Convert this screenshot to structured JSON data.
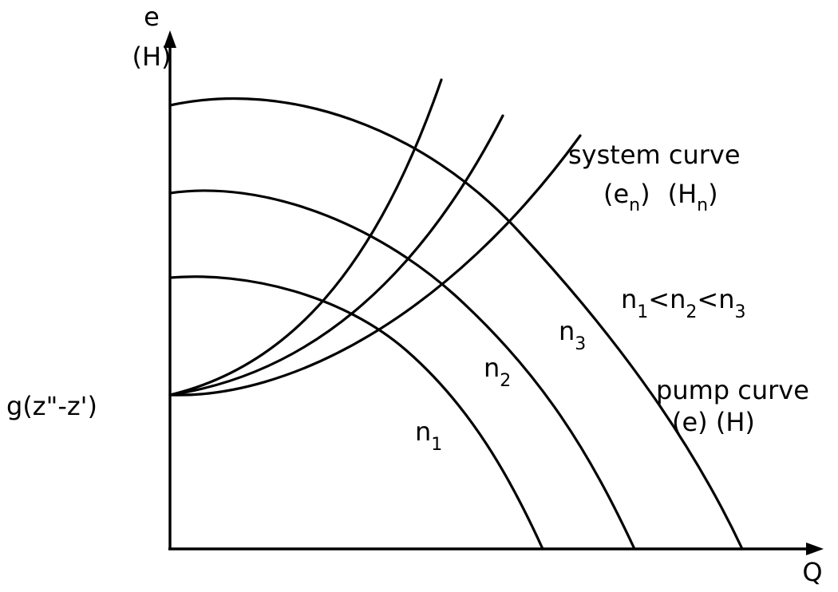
{
  "axes": {
    "y_label": "e",
    "y_label_alt": "(H)",
    "x_label": "Q",
    "origin_label": "g(z\"-z')"
  },
  "system_curve": {
    "line1": "system curve",
    "e_main": "e",
    "e_sub": "n",
    "H_main": "H",
    "H_sub": "n"
  },
  "speed_relation": {
    "n": "n",
    "sub1": "1",
    "sub2": "2",
    "sub3": "3",
    "lt": "<"
  },
  "pump_curve": {
    "line1": "pump curve",
    "line2": "(e) (H)"
  },
  "curves": {
    "n1": {
      "main": "n",
      "sub": "1"
    },
    "n2": {
      "main": "n",
      "sub": "2"
    },
    "n3": {
      "main": "n",
      "sub": "3"
    }
  },
  "colors": {
    "ink": "#000000",
    "background": "#ffffff"
  }
}
